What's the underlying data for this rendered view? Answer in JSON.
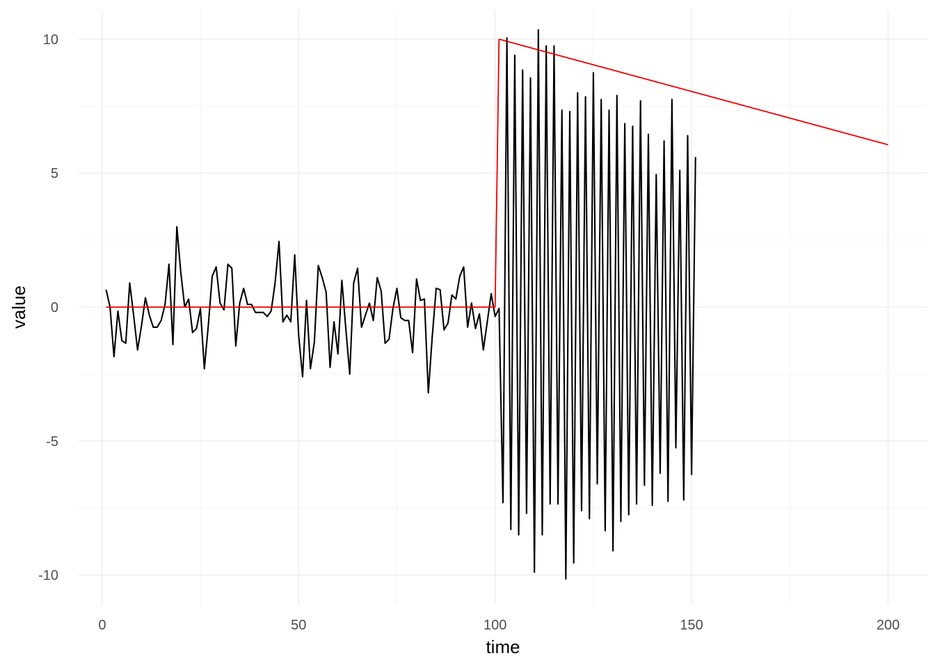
{
  "chart_data": {
    "type": "line",
    "xlabel": "time",
    "ylabel": "value",
    "xlim": [
      -6,
      210
    ],
    "ylim": [
      -11.1,
      11.1
    ],
    "grid": true,
    "x_ticks": [
      0,
      50,
      100,
      150,
      200
    ],
    "y_ticks": [
      -10,
      -5,
      0,
      5,
      10
    ],
    "x_tick_labels": [
      "0",
      "50",
      "100",
      "150",
      "200"
    ],
    "y_tick_labels": [
      "-10",
      "-5",
      "0",
      "5",
      "10"
    ],
    "series": [
      {
        "color": "#000000",
        "x_start": 1,
        "values": [
          0.65,
          0.0,
          -1.85,
          -0.15,
          -1.25,
          -1.35,
          0.9,
          -0.3,
          -1.6,
          -0.7,
          0.35,
          -0.3,
          -0.75,
          -0.75,
          -0.5,
          0.1,
          1.6,
          -1.4,
          3.0,
          1.3,
          0.0,
          0.3,
          -0.95,
          -0.8,
          -0.05,
          -2.3,
          -0.7,
          1.15,
          1.5,
          0.15,
          -0.1,
          1.6,
          1.45,
          -1.45,
          0.15,
          0.7,
          0.1,
          0.1,
          -0.2,
          -0.2,
          -0.2,
          -0.35,
          -0.15,
          0.9,
          2.45,
          -0.55,
          -0.3,
          -0.55,
          1.95,
          -1.05,
          -2.6,
          0.25,
          -2.3,
          -1.3,
          1.55,
          1.1,
          0.55,
          -2.25,
          -0.55,
          -1.75,
          1.0,
          -0.8,
          -2.5,
          0.9,
          1.45,
          -0.75,
          -0.3,
          0.15,
          -0.5,
          1.1,
          0.6,
          -1.35,
          -1.2,
          -0.05,
          0.7,
          -0.4,
          -0.5,
          -0.5,
          -1.7,
          1.05,
          0.25,
          0.3,
          -3.2,
          -1.1,
          0.7,
          0.65,
          -0.85,
          -0.6,
          0.45,
          0.3,
          1.15,
          1.5,
          -0.75,
          0.15,
          -0.8,
          -0.25,
          -1.6,
          -0.55,
          0.5,
          -0.35,
          -0.05,
          -7.3,
          10.05,
          -8.3,
          9.4,
          -8.5,
          8.85,
          -7.7,
          8.55,
          -9.9,
          10.35,
          -8.5,
          9.75,
          -7.35,
          9.75,
          -7.35,
          7.35,
          -10.15,
          7.3,
          -9.55,
          8.0,
          -7.6,
          7.85,
          -7.9,
          8.75,
          -6.6,
          7.75,
          -8.35,
          7.35,
          -9.1,
          7.9,
          -8.0,
          6.85,
          -7.75,
          6.75,
          -7.35,
          7.7,
          -6.65,
          6.45,
          -7.4,
          4.95,
          -6.2,
          6.2,
          -7.25,
          7.75,
          -5.25,
          5.1,
          -7.2,
          6.4,
          -6.25,
          5.6
        ]
      },
      {
        "color": "#ee0000",
        "x": [
          1,
          100,
          101,
          200
        ],
        "values": [
          0,
          0,
          10,
          6.06
        ]
      }
    ]
  }
}
